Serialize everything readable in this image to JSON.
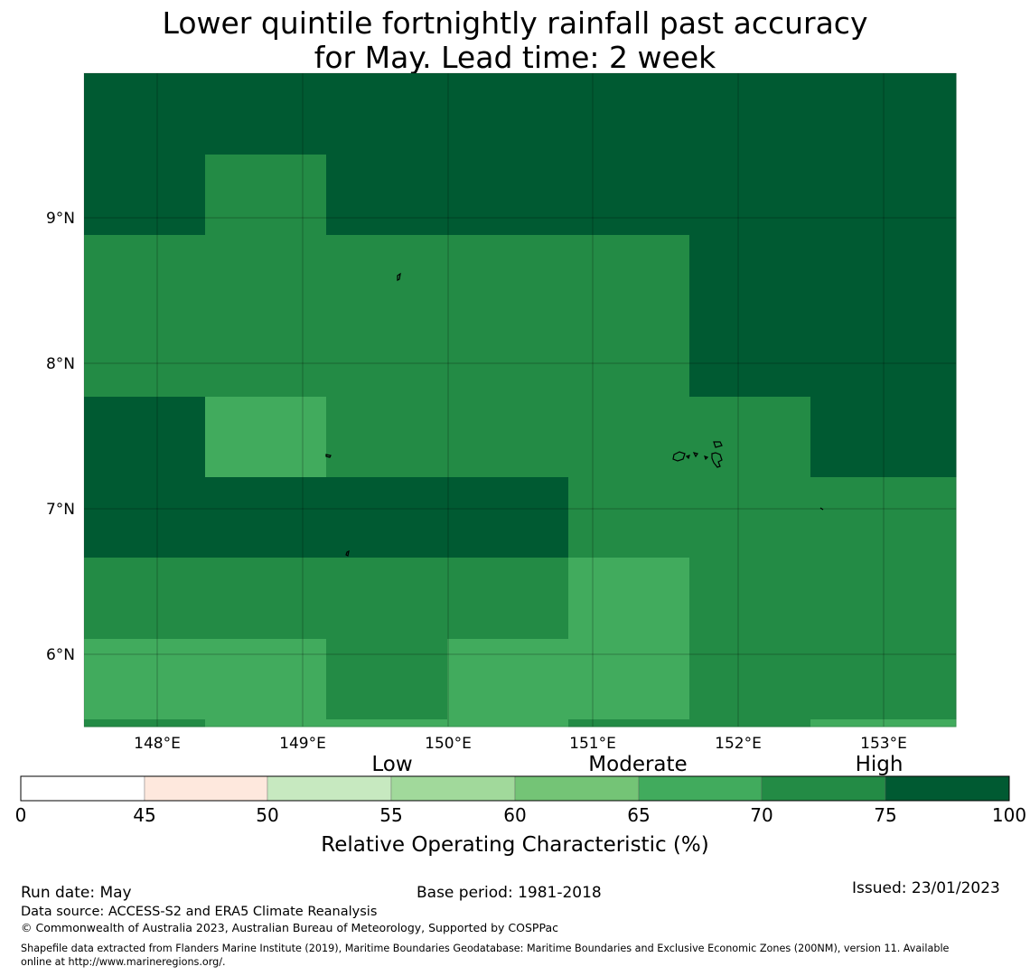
{
  "title": {
    "line1": "Lower quintile fortnightly rainfall past accuracy",
    "line2": "for May. Lead time: 2 week"
  },
  "map": {
    "lat_ticks": [
      "9°N",
      "8°N",
      "7°N",
      "6°N"
    ],
    "lon_ticks": [
      "148°E",
      "149°E",
      "150°E",
      "151°E",
      "152°E",
      "153°E"
    ],
    "category_colors": {
      "50-55": "#c7e9c0",
      "55-60": "#a1d99b",
      "60-65": "#74c476",
      "65-70": "#41ab5d",
      "70-75": "#238b45",
      "75-100": "#005a32"
    },
    "grid_rows_north_to_south": [
      [
        "75-100",
        "75-100",
        "75-100",
        "75-100",
        "75-100",
        "75-100",
        "75-100"
      ],
      [
        "75-100",
        "70-75",
        "75-100",
        "75-100",
        "75-100",
        "75-100",
        "75-100"
      ],
      [
        "70-75",
        "70-75",
        "70-75",
        "70-75",
        "70-75",
        "75-100",
        "75-100"
      ],
      [
        "70-75",
        "70-75",
        "70-75",
        "70-75",
        "70-75",
        "75-100",
        "75-100"
      ],
      [
        "75-100",
        "65-70",
        "70-75",
        "70-75",
        "70-75",
        "70-75",
        "75-100"
      ],
      [
        "75-100",
        "75-100",
        "75-100",
        "75-100",
        "70-75",
        "70-75",
        "70-75"
      ],
      [
        "70-75",
        "70-75",
        "70-75",
        "70-75",
        "65-70",
        "70-75",
        "70-75"
      ],
      [
        "65-70",
        "65-70",
        "70-75",
        "65-70",
        "65-70",
        "70-75",
        "70-75"
      ],
      [
        "70-75",
        "65-70",
        "65-70",
        "65-70",
        "70-75",
        "70-75",
        "65-70"
      ]
    ]
  },
  "colorbar": {
    "tick_labels": [
      "0",
      "45",
      "50",
      "55",
      "60",
      "65",
      "70",
      "75",
      "100"
    ],
    "colors": [
      "#ffffff",
      "#fee8dd",
      "#c7e9c0",
      "#a1d99b",
      "#74c476",
      "#41ab5d",
      "#238b45",
      "#005a32"
    ],
    "category_labels": [
      "Low",
      "Moderate",
      "High"
    ],
    "label": "Relative Operating Characteristic (%)"
  },
  "footer": {
    "run_date": "Run date: May",
    "base_period": "Base period: 1981-2018",
    "issued": "Issued: 23/01/2023",
    "data_source": "Data source: ACCESS-S2 and ERA5 Climate Reanalysis",
    "copyright": "© Commonwealth of Australia 2023, Australian Bureau of Meteorology, Supported by COSPPac",
    "shapefile_line1": "Shapefile data extracted from Flanders Marine Institute (2019), Maritime Boundaries Geodatabase: Maritime Boundaries and Exclusive Economic Zones (200NM), version 11. Available",
    "shapefile_line2": "online at http://www.marineregions.org/."
  }
}
